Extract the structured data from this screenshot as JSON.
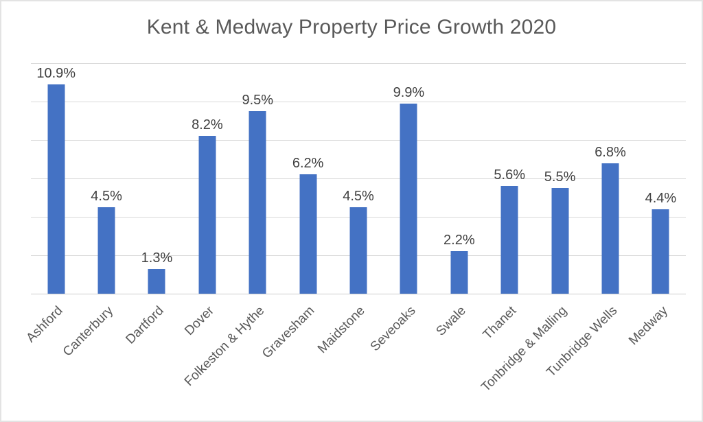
{
  "window": {
    "background": "#FFFFFF",
    "border_color": "#E3E3E3"
  },
  "chart_data": {
    "type": "bar",
    "title": "Kent & Medway Property Price Growth 2020",
    "categories": [
      "Ashford",
      "Canterbury",
      "Dartford",
      "Dover",
      "Folkeston & Hythe",
      "Gravesham",
      "Maidstone",
      "Seveoaks",
      "Swale",
      "Thanet",
      "Tonbridge & Malling",
      "Tunbridge Wells",
      "Medway"
    ],
    "values": [
      10.9,
      4.5,
      1.3,
      8.2,
      9.5,
      6.2,
      4.5,
      9.9,
      2.2,
      5.6,
      5.5,
      6.8,
      4.4
    ],
    "data_labels": [
      "10.9%",
      "4.5%",
      "1.3%",
      "8.2%",
      "9.5%",
      "6.2%",
      "4.5%",
      "9.9%",
      "2.2%",
      "5.6%",
      "5.5%",
      "6.8%",
      "4.4%"
    ],
    "xlabel": "",
    "ylabel": "",
    "ylim": [
      0,
      12
    ],
    "gridline_step": 2,
    "grid": true,
    "legend": false,
    "y_tick_labels_visible": false,
    "category_label_rotation_deg": 45,
    "colors": {
      "bar": "#4472C4",
      "gridline": "#D9D9D9",
      "axis_line": "#CCCCCC",
      "title": "#595959",
      "data_label": "#404040",
      "category_label": "#595959"
    }
  }
}
